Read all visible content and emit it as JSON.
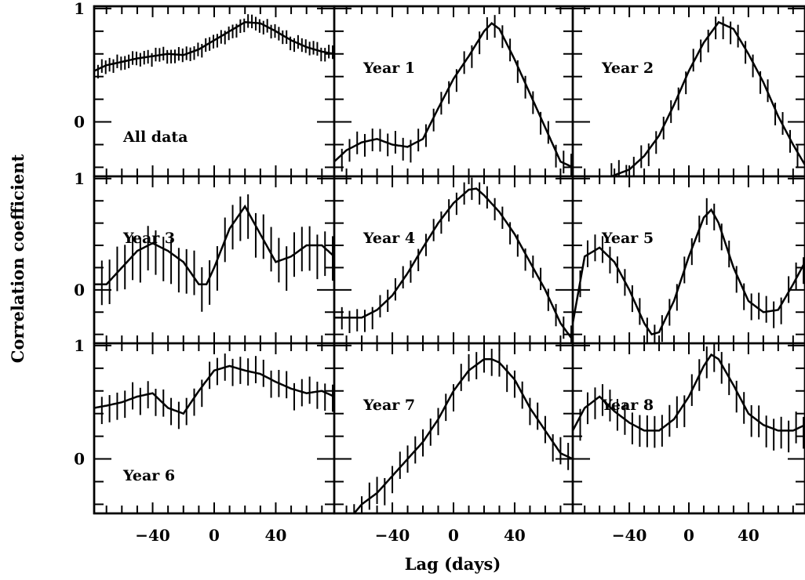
{
  "figure": {
    "xlabel": "Lag (days)",
    "ylabel": "Correlation coefficient"
  },
  "chart_data": {
    "type": "line",
    "grid_layout": "3x3",
    "xlabel": "Lag (days)",
    "ylabel": "Correlation coefficient",
    "xlim": [
      -78,
      78
    ],
    "ylim": [
      -0.48,
      1.02
    ],
    "x_ticks": [
      -40,
      0,
      40
    ],
    "y_ticks": [
      0,
      1
    ],
    "grid": false,
    "error_bars": "vertical",
    "panels": [
      {
        "label": "All data",
        "label_pos": "bottom-left",
        "x": [
          -78,
          -70,
          -60,
          -50,
          -40,
          -30,
          -20,
          -10,
          0,
          10,
          20,
          30,
          40,
          50,
          60,
          70,
          78
        ],
        "y": [
          0.45,
          0.5,
          0.53,
          0.56,
          0.58,
          0.6,
          0.59,
          0.64,
          0.72,
          0.8,
          0.88,
          0.87,
          0.8,
          0.72,
          0.66,
          0.62,
          0.6
        ],
        "err": 0.06
      },
      {
        "label": "Year 1",
        "label_pos": "top-left",
        "x": [
          -78,
          -70,
          -60,
          -50,
          -40,
          -30,
          -20,
          -10,
          0,
          10,
          20,
          25,
          30,
          40,
          50,
          60,
          70,
          78
        ],
        "y": [
          -0.35,
          -0.25,
          -0.18,
          -0.15,
          -0.2,
          -0.22,
          -0.15,
          0.12,
          0.38,
          0.58,
          0.8,
          0.87,
          0.82,
          0.55,
          0.25,
          -0.05,
          -0.35,
          -0.4
        ],
        "err": 0.1
      },
      {
        "label": "Year 2",
        "label_pos": "top-left",
        "x": [
          -52,
          -40,
          -30,
          -20,
          -10,
          0,
          10,
          20,
          30,
          40,
          50,
          60,
          70,
          78
        ],
        "y": [
          -0.48,
          -0.42,
          -0.3,
          -0.12,
          0.15,
          0.45,
          0.7,
          0.88,
          0.82,
          0.6,
          0.35,
          0.05,
          -0.2,
          -0.38
        ],
        "err": 0.1
      },
      {
        "label": "Year 3",
        "label_pos": "top-left",
        "x": [
          -78,
          -70,
          -60,
          -50,
          -40,
          -30,
          -20,
          -10,
          -5,
          0,
          10,
          20,
          30,
          40,
          50,
          60,
          70,
          78
        ],
        "y": [
          0.05,
          0.05,
          0.2,
          0.35,
          0.42,
          0.35,
          0.25,
          0.05,
          0.05,
          0.2,
          0.55,
          0.75,
          0.5,
          0.25,
          0.3,
          0.4,
          0.4,
          0.3
        ],
        "err": 0.2
      },
      {
        "label": "Year 4",
        "label_pos": "top-left",
        "x": [
          -78,
          -70,
          -60,
          -50,
          -40,
          -30,
          -20,
          -10,
          0,
          10,
          15,
          20,
          30,
          40,
          50,
          60,
          70,
          78
        ],
        "y": [
          -0.25,
          -0.25,
          -0.25,
          -0.18,
          -0.05,
          0.15,
          0.38,
          0.6,
          0.78,
          0.9,
          0.91,
          0.85,
          0.7,
          0.5,
          0.25,
          0.0,
          -0.3,
          -0.45
        ],
        "err": 0.1
      },
      {
        "label": "Year 5",
        "label_pos": "top-left",
        "x": [
          -78,
          -70,
          -60,
          -50,
          -40,
          -30,
          -25,
          -20,
          -10,
          0,
          10,
          15,
          20,
          30,
          40,
          50,
          60,
          70,
          78
        ],
        "y": [
          -0.3,
          0.3,
          0.38,
          0.25,
          0.0,
          -0.3,
          -0.4,
          -0.38,
          -0.1,
          0.3,
          0.65,
          0.72,
          0.6,
          0.2,
          -0.1,
          -0.2,
          -0.18,
          0.05,
          0.25
        ],
        "err": 0.12
      },
      {
        "label": "Year 6",
        "label_pos": "bottom-left",
        "x": [
          -78,
          -70,
          -60,
          -50,
          -40,
          -30,
          -20,
          -10,
          0,
          10,
          20,
          30,
          40,
          50,
          60,
          70,
          78
        ],
        "y": [
          0.45,
          0.47,
          0.5,
          0.55,
          0.58,
          0.45,
          0.4,
          0.6,
          0.78,
          0.82,
          0.78,
          0.75,
          0.68,
          0.62,
          0.58,
          0.6,
          0.55
        ],
        "err": 0.12
      },
      {
        "label": "Year 7",
        "label_pos": "top-left",
        "x": [
          -65,
          -60,
          -50,
          -40,
          -30,
          -20,
          -10,
          0,
          10,
          20,
          25,
          30,
          40,
          50,
          60,
          70,
          78
        ],
        "y": [
          -0.48,
          -0.4,
          -0.3,
          -0.15,
          0.0,
          0.15,
          0.35,
          0.6,
          0.78,
          0.88,
          0.88,
          0.85,
          0.7,
          0.45,
          0.25,
          0.05,
          0.0
        ],
        "err": 0.12
      },
      {
        "label": "Year 8",
        "label_pos": "top-left",
        "x": [
          -78,
          -70,
          -60,
          -50,
          -40,
          -30,
          -20,
          -10,
          0,
          10,
          15,
          20,
          30,
          40,
          50,
          60,
          70,
          78
        ],
        "y": [
          0.25,
          0.45,
          0.55,
          0.42,
          0.32,
          0.25,
          0.25,
          0.35,
          0.55,
          0.82,
          0.92,
          0.88,
          0.65,
          0.4,
          0.3,
          0.25,
          0.25,
          0.3
        ],
        "err": 0.14
      }
    ]
  }
}
